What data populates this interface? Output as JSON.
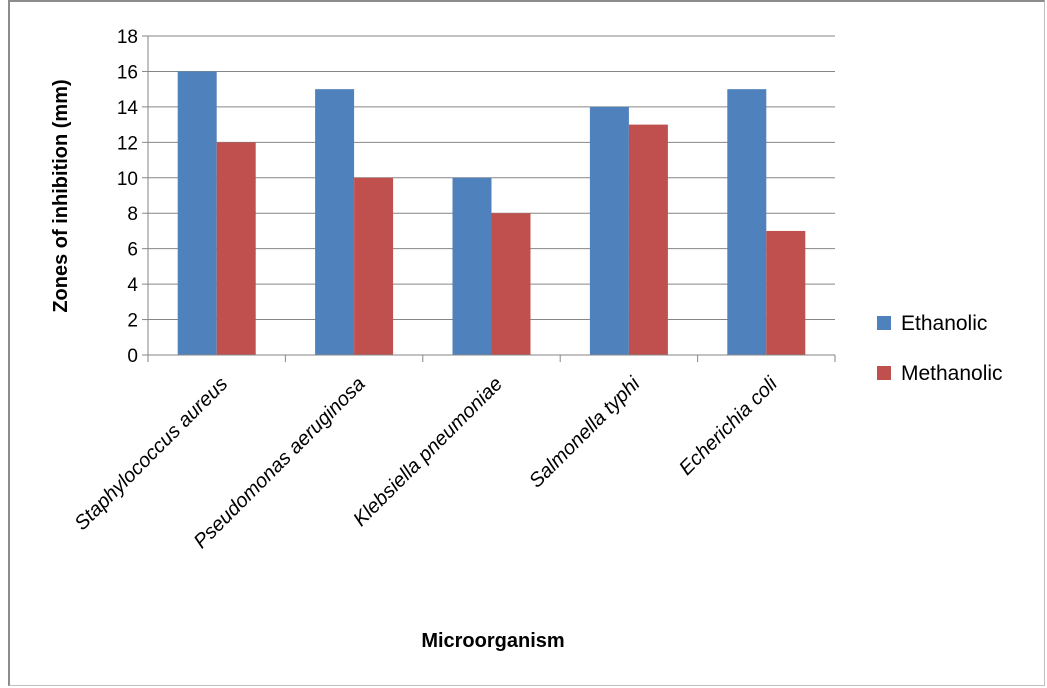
{
  "chart_data": {
    "type": "bar",
    "categories": [
      "Staphylococcus aureus",
      "Pseudomonas aeruginosa",
      "Klebsiella pneumoniae",
      "Salmonella typhi",
      "Echerichia coli"
    ],
    "series": [
      {
        "name": "Ethanolic",
        "values": [
          16,
          15,
          10,
          14,
          15
        ],
        "color": "#4f81bd"
      },
      {
        "name": "Methanolic",
        "values": [
          12,
          10,
          8,
          13,
          7
        ],
        "color": "#c0504d"
      }
    ],
    "title": "",
    "xlabel": "Microorganism",
    "ylabel": "Zones of inhibition  (mm)",
    "ylim": [
      0,
      18
    ],
    "yticks": [
      0,
      2,
      4,
      6,
      8,
      10,
      12,
      14,
      16,
      18
    ],
    "grid": true,
    "legend": "right"
  }
}
